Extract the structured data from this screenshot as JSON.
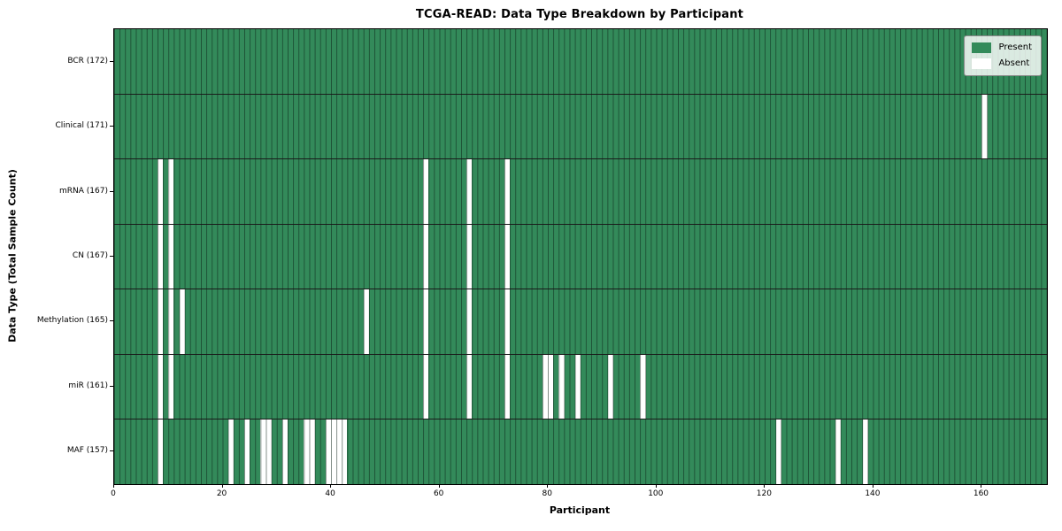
{
  "title": "TCGA-READ: Data Type Breakdown by Participant",
  "chart_data": {
    "type": "heatmap",
    "title": "TCGA-READ: Data Type Breakdown by Participant",
    "xlabel": "Participant",
    "ylabel": "Data Type (Total Sample Count)",
    "n_participants": 172,
    "xlim": [
      0,
      172
    ],
    "x_ticks": [
      0,
      20,
      40,
      60,
      80,
      100,
      120,
      140,
      160
    ],
    "grid": true,
    "legend": {
      "position": "upper right",
      "entries": [
        {
          "label": "Present",
          "color": "#338a5a"
        },
        {
          "label": "Absent",
          "color": "#ffffff"
        }
      ]
    },
    "colors": {
      "present": "#338a5a",
      "absent": "#ffffff",
      "cell_border": "rgba(10,30,20,0.52)",
      "row_separator": "#1c1c1c",
      "plot_border": "#000000"
    },
    "rows": [
      {
        "label": "BCR (172)",
        "data_type": "BCR",
        "total": 172,
        "absent_participants": []
      },
      {
        "label": "Clinical (171)",
        "data_type": "Clinical",
        "total": 171,
        "absent_participants": [
          160
        ]
      },
      {
        "label": "mRNA (167)",
        "data_type": "mRNA",
        "total": 167,
        "absent_participants": [
          8,
          10,
          57,
          65,
          72
        ]
      },
      {
        "label": "CN (167)",
        "data_type": "CN",
        "total": 167,
        "absent_participants": [
          8,
          10,
          57,
          65,
          72
        ]
      },
      {
        "label": "Methylation (165)",
        "data_type": "Methylation",
        "total": 165,
        "absent_participants": [
          8,
          10,
          12,
          46,
          57,
          65,
          72
        ]
      },
      {
        "label": "miR (161)",
        "data_type": "miR",
        "total": 161,
        "absent_participants": [
          8,
          10,
          57,
          65,
          72,
          79,
          80,
          82,
          85,
          91,
          97
        ]
      },
      {
        "label": "MAF (157)",
        "data_type": "MAF",
        "total": 157,
        "absent_participants": [
          8,
          21,
          24,
          27,
          28,
          31,
          35,
          36,
          39,
          40,
          41,
          42,
          122,
          133,
          138
        ]
      }
    ]
  }
}
